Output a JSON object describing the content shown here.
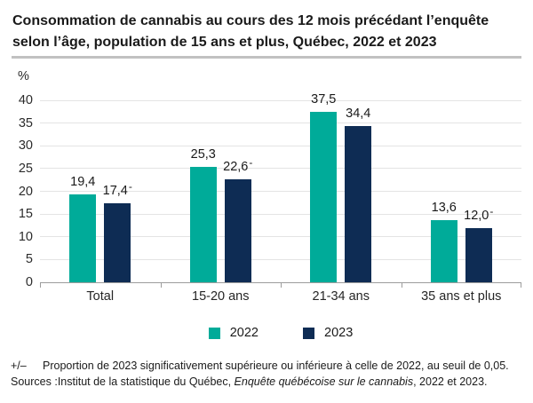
{
  "title": "Consommation de cannabis au cours des 12 mois précédant l’enquête selon l’âge, population de 15 ans et plus, Québec, 2022 et 2023",
  "chart_data": {
    "type": "bar",
    "unit_label": "%",
    "categories": [
      "Total",
      "15-20 ans",
      "21-34 ans",
      "35 ans et plus"
    ],
    "series": [
      {
        "name": "2022",
        "color": "#00ab99",
        "values": [
          19.4,
          25.3,
          37.5,
          13.6
        ],
        "value_labels": [
          "19,4",
          "25,3",
          "37,5",
          "13,6"
        ],
        "marks": [
          "",
          "",
          "",
          ""
        ]
      },
      {
        "name": "2023",
        "color": "#0e2c54",
        "values": [
          17.4,
          22.6,
          34.4,
          12.0
        ],
        "value_labels": [
          "17,4",
          "22,6",
          "34,4",
          "12,0"
        ],
        "marks": [
          "-",
          "-",
          "",
          "-"
        ]
      }
    ],
    "ylim": [
      0,
      40
    ],
    "yticks": [
      0,
      5,
      10,
      15,
      20,
      25,
      30,
      35,
      40
    ],
    "grid": true,
    "legend_position": "bottom"
  },
  "footnote": {
    "symbol": "+/–",
    "text": "Proportion de 2023 significativement supérieure ou inférieure à celle de 2022, au seuil de 0,05."
  },
  "sources": {
    "label": "Sources :",
    "text_before_italic": "Institut de la statistique du Québec, ",
    "italic": "Enquête québécoise sur le cannabis",
    "text_after_italic": ", 2022 et 2023."
  },
  "colors": {
    "series_2022": "#00ab99",
    "series_2023": "#0e2c54",
    "gridline": "#e4e4e4",
    "axis": "#9c9c9c"
  }
}
